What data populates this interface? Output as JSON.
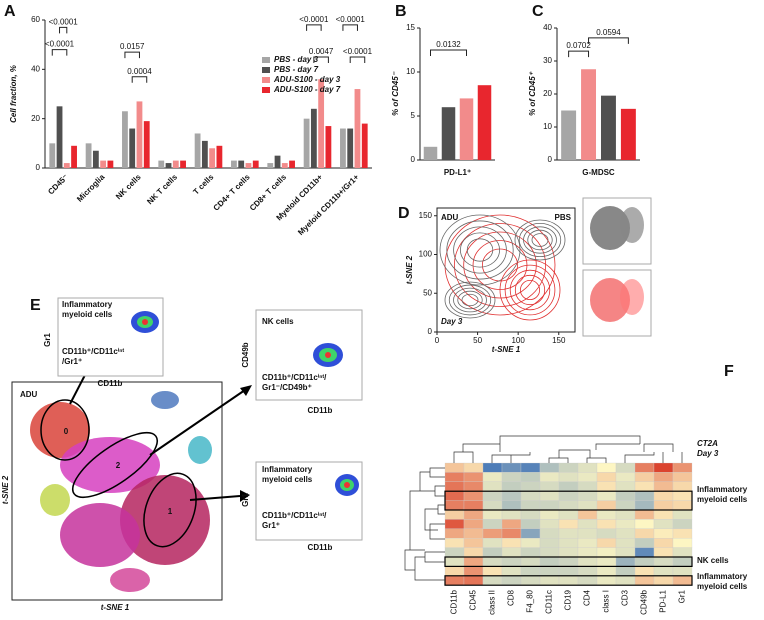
{
  "panel_labels": [
    "A",
    "B",
    "C",
    "D",
    "E",
    "F"
  ],
  "chart_data": [
    {
      "type": "bar",
      "y_label": "Cell fraction, %",
      "categories": [
        "CD45⁻",
        "Microglia",
        "NK cells",
        "NK T cells",
        "T cells",
        "CD4+ T cells",
        "CD8+ T cells",
        "Myeloid CD11b+",
        "Myeloid CD11b+/Gr1+"
      ],
      "series": [
        {
          "name": "PBS - day 3",
          "color": "#a6a6a6",
          "values": [
            10,
            10,
            23,
            3,
            14,
            3,
            2,
            20,
            16
          ]
        },
        {
          "name": "PBS - day 7",
          "color": "#505050",
          "values": [
            25,
            7,
            16,
            2,
            11,
            3,
            5,
            24,
            16
          ]
        },
        {
          "name": "ADU-S100 - day 3",
          "color": "#f28b8b",
          "values": [
            2,
            3,
            27,
            3,
            8,
            2,
            2,
            36,
            32
          ]
        },
        {
          "name": "ADU-S100 - day 7",
          "color": "#e8262e",
          "values": [
            9,
            3,
            19,
            3,
            9,
            3,
            3,
            17,
            18
          ]
        }
      ],
      "ylim": [
        0,
        60
      ],
      "yticks": [
        0,
        20,
        40,
        60
      ],
      "legend": "upper right",
      "annotations": [
        "<0.0001",
        "<0.0001",
        "0.0157",
        "0.0004",
        "<0.0001",
        "0.0047",
        "<0.0001",
        "<0.0001"
      ]
    },
    {
      "type": "bar",
      "y_label": "% of CD45⁻",
      "categories": [
        "PD-L1⁺"
      ],
      "series": [
        {
          "color": "#a6a6a6",
          "values": [
            1.5
          ]
        },
        {
          "color": "#505050",
          "values": [
            6
          ]
        },
        {
          "color": "#f28b8b",
          "values": [
            7
          ]
        },
        {
          "color": "#e8262e",
          "values": [
            8.5
          ]
        }
      ],
      "ylim": [
        0,
        15
      ],
      "yticks": [
        0,
        5,
        10,
        15
      ],
      "annotations": [
        "0.0132"
      ]
    },
    {
      "type": "bar",
      "y_label": "% of CD45⁺",
      "categories": [
        "G-MDSC"
      ],
      "series": [
        {
          "color": "#a6a6a6",
          "values": [
            15
          ]
        },
        {
          "color": "#f28b8b",
          "values": [
            27.5
          ]
        },
        {
          "color": "#505050",
          "values": [
            19.5
          ]
        },
        {
          "color": "#e8262e",
          "values": [
            15.5
          ]
        }
      ],
      "ylim": [
        0,
        40
      ],
      "yticks": [
        0,
        10,
        20,
        30,
        40
      ],
      "annotations": [
        "0.0702",
        "0.0594"
      ]
    },
    {
      "type": "contour",
      "x_label": "t-SNE 1",
      "y_label": "t-SNE 2",
      "xlim": [
        0,
        170
      ],
      "xticks": [
        0,
        50,
        100,
        150
      ],
      "ylim": [
        0,
        160
      ],
      "yticks": [
        0,
        50,
        100,
        150
      ],
      "labels": [
        "ADU",
        "PBS",
        "Day 3"
      ]
    },
    {
      "type": "heatmap",
      "annotations": [
        "CT2A",
        "Day 3"
      ],
      "columns": [
        "CD11b",
        "CD45",
        "class II",
        "CD8",
        "F4_80",
        "CD11c",
        "CD19",
        "CD4",
        "class I",
        "CD3",
        "CD49b",
        "PD-L1",
        "Gr1"
      ],
      "zlim": [
        -2,
        2
      ],
      "colors": [
        "#3a6fb7",
        "#fdf6c3",
        "#d7301f"
      ],
      "values": [
        [
          0.5,
          0.3,
          -1.8,
          -1.5,
          -1.7,
          -0.8,
          -0.5,
          -0.3,
          0,
          -0.4,
          1.2,
          1.8,
          1.0
        ],
        [
          1.2,
          1.0,
          -0.2,
          -0.5,
          -0.6,
          -0.2,
          -0.3,
          -0.2,
          0.3,
          -0.2,
          0.4,
          0.8,
          0.5
        ],
        [
          1.3,
          1.1,
          -0.3,
          -0.6,
          -0.5,
          -0.4,
          -0.6,
          -0.4,
          0.2,
          -0.3,
          0.2,
          0.6,
          0.3
        ],
        [
          1.4,
          1.0,
          -0.5,
          -0.7,
          -0.4,
          -0.3,
          -0.5,
          -0.4,
          -0.2,
          -0.6,
          -0.8,
          0.3,
          0.2
        ],
        [
          1.2,
          1.2,
          -0.4,
          -0.8,
          -0.5,
          -0.5,
          -0.4,
          -0.3,
          0.4,
          -0.5,
          -0.9,
          0.4,
          0.3
        ],
        [
          0.4,
          0.8,
          -0.2,
          -0.3,
          -0.4,
          -0.2,
          -0.3,
          0.5,
          -0.2,
          -0.3,
          0.6,
          0.2,
          -0.3
        ],
        [
          1.6,
          0.8,
          -0.5,
          0.8,
          -0.6,
          -0.3,
          0.2,
          -0.3,
          0.2,
          -0.2,
          0,
          -0.3,
          -0.5
        ],
        [
          0.8,
          0.6,
          0.9,
          1.1,
          -1.2,
          -0.4,
          -0.3,
          -0.3,
          -0.4,
          -0.3,
          0.3,
          0.1,
          0.2
        ],
        [
          0.2,
          0.5,
          -0.3,
          0.2,
          -0.2,
          -0.4,
          -0.3,
          -0.2,
          0.3,
          -0.3,
          -0.6,
          0.3,
          0
        ],
        [
          -0.5,
          0.3,
          -0.6,
          -0.3,
          -0.5,
          -0.4,
          -0.3,
          -0.2,
          -0.1,
          -0.3,
          -1.6,
          0.2,
          -0.3
        ],
        [
          -0.3,
          0.8,
          -0.4,
          -0.5,
          -0.4,
          -0.6,
          -0.5,
          -0.3,
          -0.2,
          -1.0,
          -0.6,
          -0.4,
          -0.6
        ],
        [
          0.3,
          1.0,
          0.2,
          -0.3,
          -0.5,
          -0.5,
          -0.5,
          -0.4,
          -0.2,
          -0.6,
          0.2,
          -0.3,
          -0.3
        ],
        [
          1.2,
          1.3,
          -0.4,
          -0.5,
          -0.4,
          -0.3,
          -0.3,
          -0.4,
          -0.2,
          -0.3,
          0.5,
          0.3,
          0.6
        ]
      ],
      "row_groups": [
        [
          "Inflammatory",
          "myeloid cells"
        ],
        [
          "NK cells"
        ],
        [
          "Inflammatory",
          "myeloid cells"
        ]
      ]
    }
  ],
  "panel_e": {
    "label": "ADU",
    "x_label": "t-SNE 1",
    "y_label": "t-SNE 2",
    "clusters": [
      "0",
      "2",
      "1"
    ],
    "insets": [
      {
        "title": [
          "Inflammatory",
          "myeloid cells"
        ],
        "phenotype": [
          "CD11b⁺/CD11cⁱⁿᵗ",
          "/Gr1⁺"
        ],
        "x_label": "CD11b",
        "y_label": "Gr1"
      },
      {
        "title": [
          "NK cells"
        ],
        "phenotype": [
          "CD11b⁺/CD11cⁱⁿᵗ/",
          "Gr1⁻/CD49b⁺"
        ],
        "x_label": "CD11b",
        "y_label": "CD49b"
      },
      {
        "title": [
          "Inflammatory",
          "myeloid cells"
        ],
        "phenotype": [
          "CD11b⁺/CD11cⁱⁿᵗ/",
          "Gr1⁺"
        ],
        "x_label": "CD11b",
        "y_label": "Gr1"
      }
    ]
  }
}
